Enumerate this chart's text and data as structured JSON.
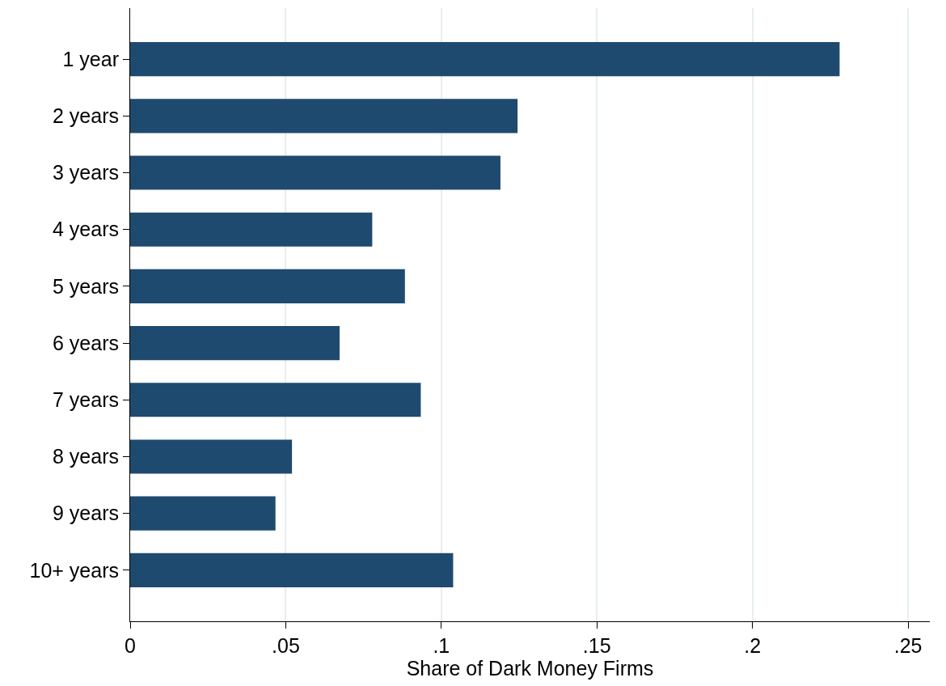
{
  "chart_data": {
    "type": "bar",
    "orientation": "horizontal",
    "xlabel": "Share of Dark Money Firms",
    "categories": [
      "1 year",
      "2 years",
      "3 years",
      "4 years",
      "5 years",
      "6 years",
      "7 years",
      "8 years",
      "9 years",
      "10+ years"
    ],
    "values": [
      0.228,
      0.1245,
      0.119,
      0.0778,
      0.0883,
      0.0673,
      0.0934,
      0.052,
      0.0467,
      0.1038
    ],
    "color": "#1f4a70",
    "xlim": [
      0,
      0.257
    ],
    "xticks": [
      0,
      {
        "value": 0.05,
        "label": ".05"
      },
      {
        "value": 0.1,
        "label": ".1"
      },
      {
        "value": 0.15,
        "label": ".15"
      },
      {
        "value": 0.2,
        "label": ".2"
      },
      {
        "value": 0.25,
        "label": ".25"
      }
    ],
    "grid": "x",
    "legend": false
  }
}
